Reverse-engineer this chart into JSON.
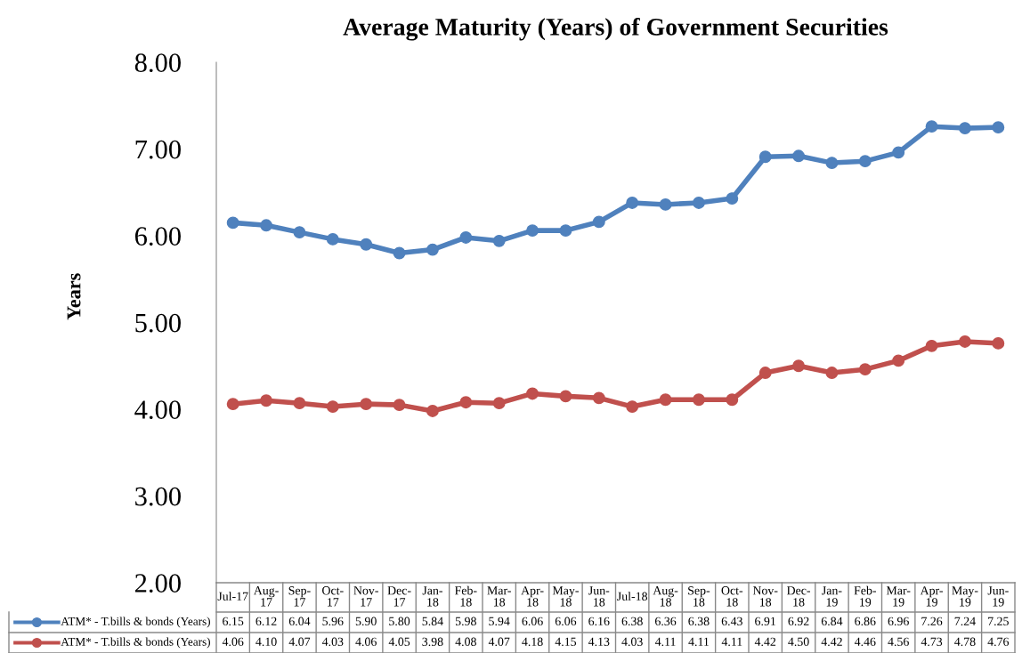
{
  "chart_data": {
    "type": "line",
    "title": "Average Maturity (Years) of Government Securities",
    "ylabel": "Years",
    "categories": [
      "Jul-17",
      "Aug-\n17",
      "Sep-\n17",
      "Oct-\n17",
      "Nov-\n17",
      "Dec-\n17",
      "Jan-\n18",
      "Feb-\n18",
      "Mar-\n18",
      "Apr-\n18",
      "May-\n18",
      "Jun-\n18",
      "Jul-18",
      "Aug-\n18",
      "Sep-\n18",
      "Oct-\n18",
      "Nov-\n18",
      "Dec-\n18",
      "Jan-\n19",
      "Feb-\n19",
      "Mar-\n19",
      "Apr-\n19",
      "May-\n19",
      "Jun-\n19"
    ],
    "series": [
      {
        "name": "ATM* - T.bills & bonds (Years)",
        "color": "#4f81bd",
        "values": [
          6.15,
          6.12,
          6.04,
          5.96,
          5.9,
          5.8,
          5.84,
          5.98,
          5.94,
          6.06,
          6.06,
          6.16,
          6.38,
          6.36,
          6.38,
          6.43,
          6.91,
          6.92,
          6.84,
          6.86,
          6.96,
          7.26,
          7.24,
          7.25
        ],
        "value_labels": [
          "6.15",
          "6.12",
          "6.04",
          "5.96",
          "5.90",
          "5.80",
          "5.84",
          "5.98",
          "5.94",
          "6.06",
          "6.06",
          "6.16",
          "6.38",
          "6.36",
          "6.38",
          "6.43",
          "6.91",
          "6.92",
          "6.84",
          "6.86",
          "6.96",
          "7.26",
          "7.24",
          "7.25"
        ]
      },
      {
        "name": "ATM* - T.bills & bonds (Years)",
        "color": "#c0504d",
        "values": [
          4.06,
          4.1,
          4.07,
          4.03,
          4.06,
          4.05,
          3.98,
          4.08,
          4.07,
          4.18,
          4.15,
          4.13,
          4.03,
          4.11,
          4.11,
          4.11,
          4.42,
          4.5,
          4.42,
          4.46,
          4.56,
          4.73,
          4.78,
          4.76
        ],
        "value_labels": [
          "4.06",
          "4.10",
          "4.07",
          "4.03",
          "4.06",
          "4.05",
          "3.98",
          "4.08",
          "4.07",
          "4.18",
          "4.15",
          "4.13",
          "4.03",
          "4.11",
          "4.11",
          "4.11",
          "4.42",
          "4.50",
          "4.42",
          "4.46",
          "4.56",
          "4.73",
          "4.78",
          "4.76"
        ]
      }
    ],
    "ylim": [
      2,
      8
    ],
    "yticks": [
      {
        "value": 2,
        "label": "2.00"
      },
      {
        "value": 3,
        "label": "3.00"
      },
      {
        "value": 4,
        "label": "4.00"
      },
      {
        "value": 5,
        "label": "5.00"
      },
      {
        "value": 6,
        "label": "6.00"
      },
      {
        "value": 7,
        "label": "7.00"
      },
      {
        "value": 8,
        "label": "8.00"
      }
    ],
    "grid": false,
    "legend": "bottom",
    "marker": "circle",
    "line_style": "solid"
  }
}
